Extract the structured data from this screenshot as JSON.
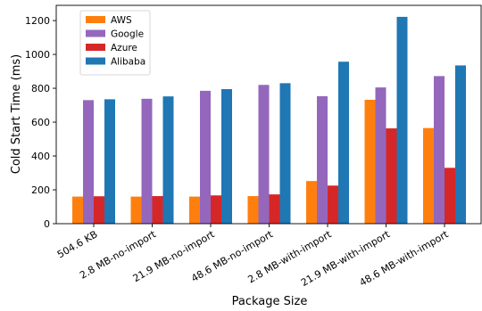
{
  "chart_data": {
    "type": "bar",
    "xlabel": "Package Size",
    "ylabel": "Cold Start Time (ms)",
    "ylim": [
      0,
      1290
    ],
    "yticks": [
      0,
      200,
      400,
      600,
      800,
      1000,
      1200
    ],
    "grid": false,
    "legend_position": "top-left",
    "categories": [
      "504.6 KB",
      "2.8 MB-no-import",
      "21.9 MB-no-import",
      "48.6 MB-no-import",
      "2.8 MB-with-import",
      "21.9 MB-with-import",
      "48.6 MB-with-import"
    ],
    "series": [
      {
        "name": "AWS",
        "color": "#ff7f0e",
        "values": [
          160,
          160,
          160,
          163,
          252,
          732,
          565
        ]
      },
      {
        "name": "Google",
        "color": "#9467bd",
        "values": [
          730,
          738,
          785,
          820,
          753,
          805,
          872
        ]
      },
      {
        "name": "Azure",
        "color": "#d62728",
        "values": [
          162,
          163,
          167,
          173,
          225,
          563,
          330
        ]
      },
      {
        "name": "Alibaba",
        "color": "#1f77b4",
        "values": [
          735,
          752,
          795,
          830,
          957,
          1222,
          935
        ]
      }
    ]
  }
}
